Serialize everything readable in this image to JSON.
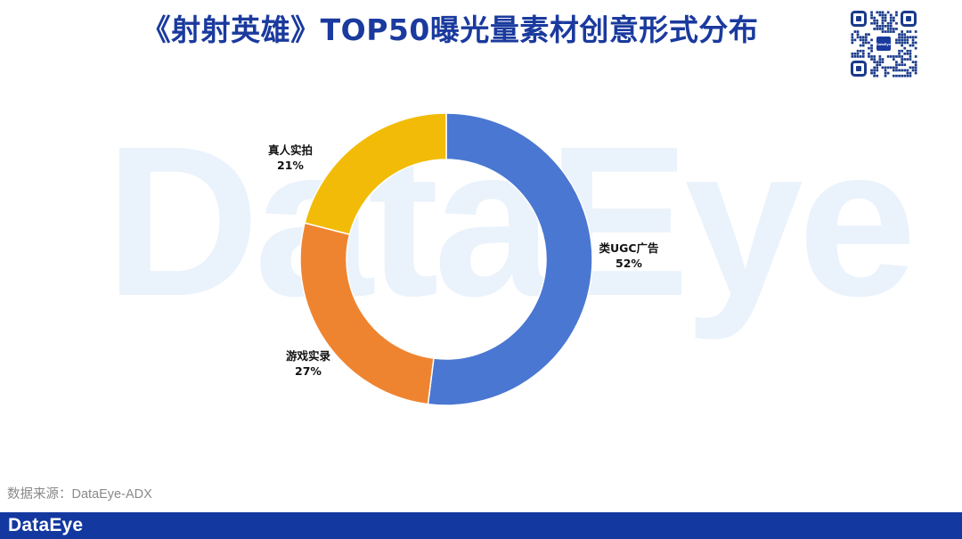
{
  "header": {
    "title": "《射射英雄》TOP50曝光量素材创意形式分布"
  },
  "watermark": {
    "text": "DataEye"
  },
  "qr_code": {
    "icon": "qr-code-icon",
    "center_logo_text": "DataEye"
  },
  "chart_data": {
    "type": "pie",
    "style": "donut",
    "categories": [
      "类UGC广告",
      "游戏实录",
      "真人实拍"
    ],
    "values": [
      52,
      27,
      21
    ],
    "labels": [
      "52%",
      "27%",
      "21%"
    ],
    "colors": [
      "#4a77d1",
      "#ef8430",
      "#f2bb07"
    ],
    "start_angle_deg": 0,
    "direction": "clockwise",
    "title": "",
    "legend": "none"
  },
  "footer": {
    "source_text": "数据来源：DataEye-ADX",
    "logo_text": "DataEye"
  }
}
